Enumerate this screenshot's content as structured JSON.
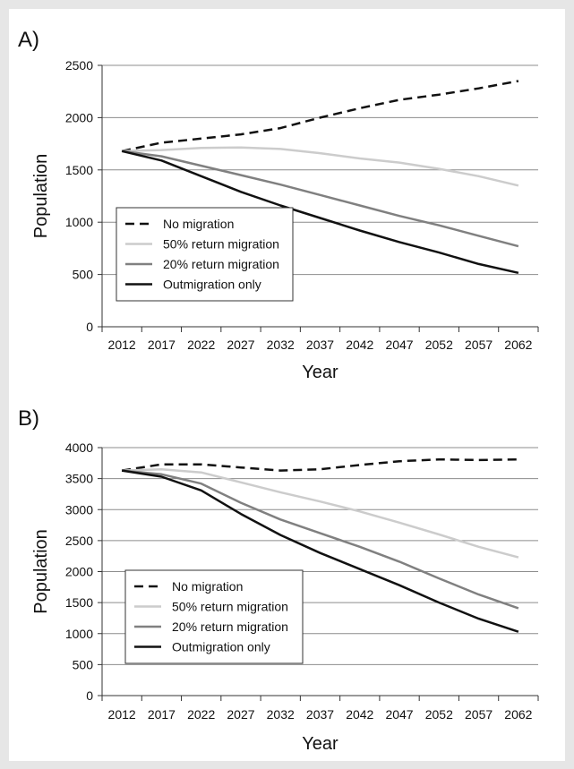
{
  "chart_data": [
    {
      "type": "line",
      "panel_label": "A)",
      "xlabel": "Year",
      "ylabel": "Population",
      "categories": [
        "2012",
        "2017",
        "2022",
        "2027",
        "2032",
        "2037",
        "2042",
        "2047",
        "2052",
        "2057",
        "2062"
      ],
      "ylim": [
        0,
        2500
      ],
      "yticks": [
        "0",
        "500",
        "1000",
        "1500",
        "2000",
        "2500"
      ],
      "grid": true,
      "legend_position": "bottom-left",
      "series": [
        {
          "name": "No migration",
          "color": "#111111",
          "dash": true,
          "values": [
            1680,
            1760,
            1800,
            1840,
            1900,
            2000,
            2090,
            2170,
            2220,
            2280,
            2350
          ]
        },
        {
          "name": "50% return migration",
          "color": "#cccccc",
          "dash": false,
          "values": [
            1680,
            1690,
            1710,
            1715,
            1700,
            1660,
            1610,
            1570,
            1510,
            1440,
            1350
          ]
        },
        {
          "name": "20% return migration",
          "color": "#808080",
          "dash": false,
          "values": [
            1680,
            1630,
            1540,
            1450,
            1360,
            1260,
            1160,
            1060,
            970,
            870,
            770
          ]
        },
        {
          "name": "Outmigration only",
          "color": "#111111",
          "dash": false,
          "values": [
            1680,
            1590,
            1440,
            1290,
            1160,
            1040,
            920,
            810,
            710,
            600,
            515
          ]
        }
      ]
    },
    {
      "type": "line",
      "panel_label": "B)",
      "xlabel": "Year",
      "ylabel": "Population",
      "categories": [
        "2012",
        "2017",
        "2022",
        "2027",
        "2032",
        "2037",
        "2042",
        "2047",
        "2052",
        "2057",
        "2062"
      ],
      "ylim": [
        0,
        4000
      ],
      "yticks": [
        "0",
        "500",
        "1000",
        "1500",
        "2000",
        "2500",
        "3000",
        "3500",
        "4000"
      ],
      "grid": true,
      "legend_position": "bottom-left",
      "series": [
        {
          "name": "No migration",
          "color": "#111111",
          "dash": true,
          "values": [
            3630,
            3730,
            3730,
            3680,
            3630,
            3650,
            3720,
            3780,
            3810,
            3800,
            3810
          ]
        },
        {
          "name": "50% return migration",
          "color": "#cccccc",
          "dash": false,
          "values": [
            3630,
            3650,
            3600,
            3440,
            3280,
            3130,
            2970,
            2790,
            2600,
            2400,
            2230
          ]
        },
        {
          "name": "20% return migration",
          "color": "#808080",
          "dash": false,
          "values": [
            3630,
            3570,
            3420,
            3110,
            2840,
            2620,
            2400,
            2160,
            1890,
            1630,
            1410
          ]
        },
        {
          "name": "Outmigration only",
          "color": "#111111",
          "dash": false,
          "values": [
            3630,
            3530,
            3310,
            2930,
            2590,
            2300,
            2040,
            1780,
            1500,
            1240,
            1030
          ]
        }
      ]
    }
  ]
}
